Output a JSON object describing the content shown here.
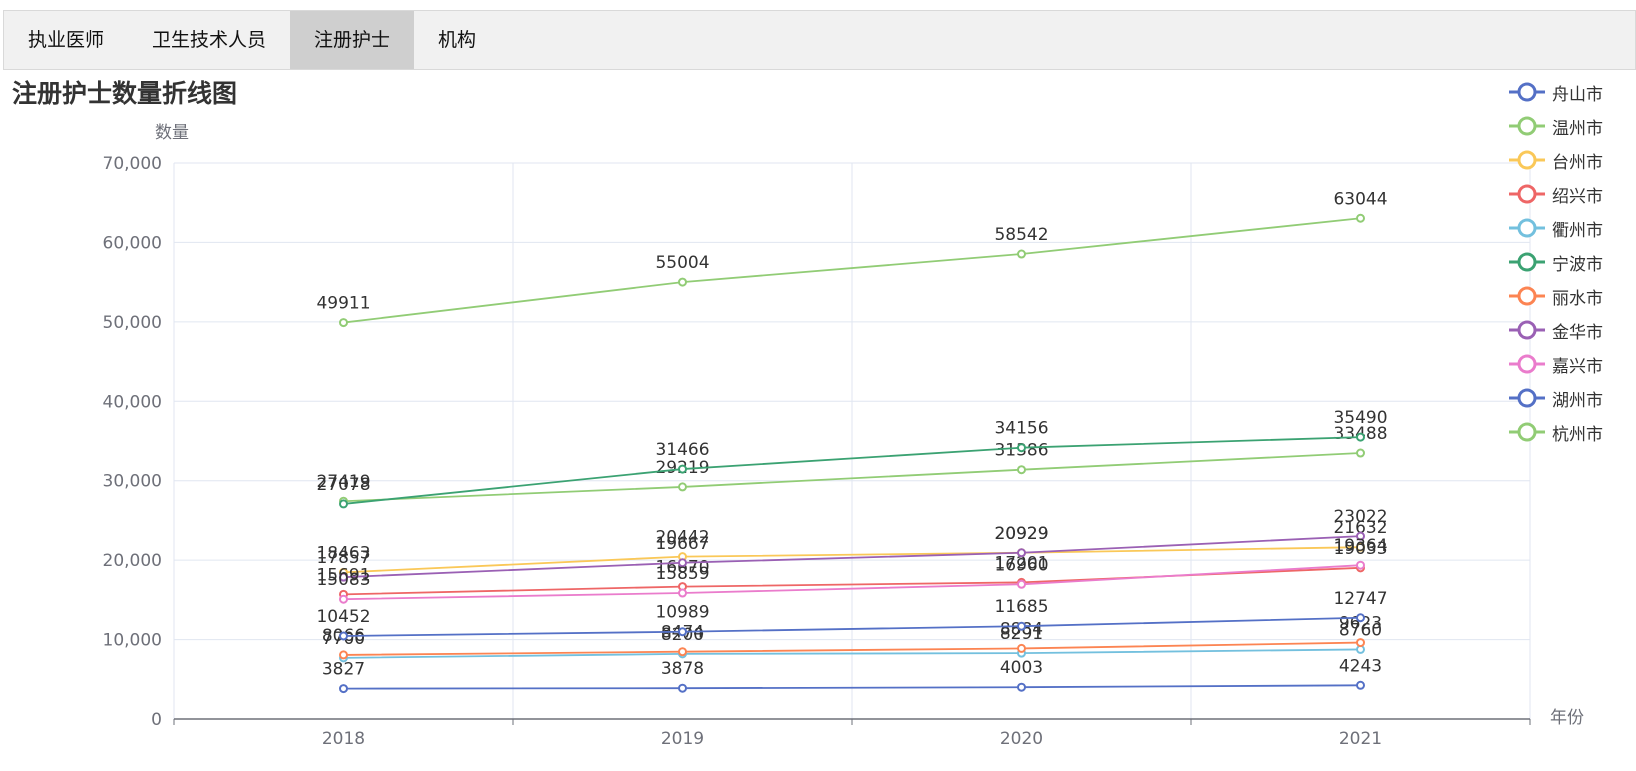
{
  "tabs": [
    {
      "label": "执业医师",
      "active": false
    },
    {
      "label": "卫生技术人员",
      "active": false
    },
    {
      "label": "注册护士",
      "active": true
    },
    {
      "label": "机构",
      "active": false
    }
  ],
  "chart_data": {
    "type": "line",
    "title": "注册护士数量折线图",
    "xlabel": "年份",
    "ylabel": "数量",
    "categories": [
      "2018",
      "2019",
      "2020",
      "2021"
    ],
    "ylim": [
      0,
      70000
    ],
    "yticks": [
      0,
      10000,
      20000,
      30000,
      40000,
      50000,
      60000,
      70000
    ],
    "ytick_labels": [
      "0",
      "10,000",
      "20,000",
      "30,000",
      "40,000",
      "50,000",
      "60,000",
      "70,000"
    ],
    "grid": true,
    "legend_position": "top-right",
    "series": [
      {
        "name": "舟山市",
        "color": "#5470c6",
        "values": [
          3827,
          3878,
          4003,
          4243
        ]
      },
      {
        "name": "温州市",
        "color": "#91cc75",
        "values": [
          27419,
          29219,
          31386,
          33488
        ]
      },
      {
        "name": "台州市",
        "color": "#fac858",
        "values": [
          18463,
          20442,
          20929,
          21632
        ]
      },
      {
        "name": "绍兴市",
        "color": "#ee6666",
        "values": [
          15691,
          16670,
          17201,
          19033
        ]
      },
      {
        "name": "衢州市",
        "color": "#73c0de",
        "values": [
          7700,
          8200,
          8291,
          8760
        ]
      },
      {
        "name": "宁波市",
        "color": "#3ba272",
        "values": [
          27078,
          31466,
          34156,
          35490
        ]
      },
      {
        "name": "丽水市",
        "color": "#fc8452",
        "values": [
          8066,
          8474,
          8884,
          9623
        ]
      },
      {
        "name": "金华市",
        "color": "#9a60b4",
        "values": [
          17857,
          19667,
          20929,
          23022
        ]
      },
      {
        "name": "嘉兴市",
        "color": "#ea7ccc",
        "values": [
          15083,
          15859,
          16960,
          19364
        ]
      },
      {
        "name": "湖州市",
        "color": "#5470c6",
        "values": [
          10452,
          10989,
          11685,
          12747
        ]
      },
      {
        "name": "杭州市",
        "color": "#91cc75",
        "values": [
          49911,
          55004,
          58542,
          63044
        ]
      }
    ]
  }
}
